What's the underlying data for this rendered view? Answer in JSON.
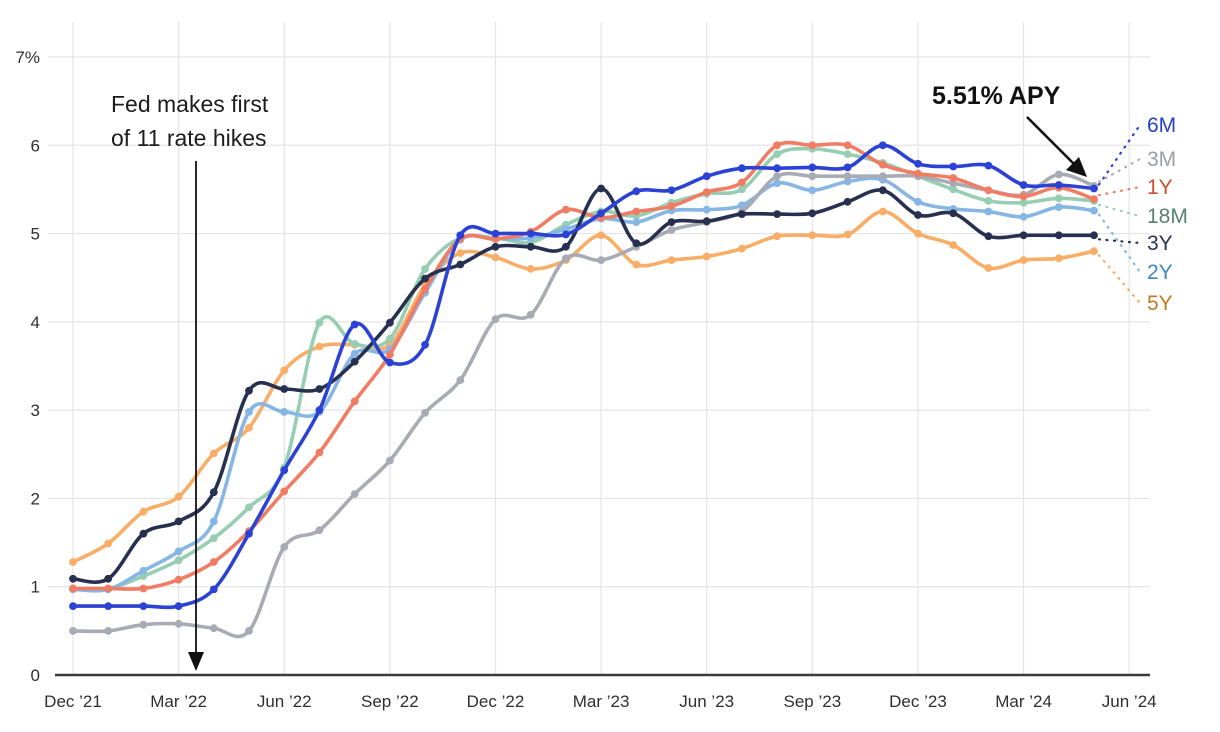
{
  "chart_data": {
    "type": "line",
    "title": "",
    "unit": "%",
    "ylim": [
      0,
      7
    ],
    "grid": true,
    "points_per_series": 30,
    "x_start_month": "Dec 2021",
    "x_end_month": "May 2024",
    "x_tick_every_months": 3,
    "x_tick_labels": [
      "Dec ’21",
      "Mar ’22",
      "Jun ’22",
      "Sep ’22",
      "Dec ’22",
      "Mar ’23",
      "Jun ’23",
      "Sep ’23",
      "Dec ’23",
      "Mar ’24",
      "Jun ’24"
    ],
    "y_tick_labels": [
      "0",
      "1",
      "2",
      "3",
      "4",
      "5",
      "6",
      "7%"
    ],
    "legend_position": "right",
    "draw_order": [
      "5Y",
      "18M",
      "2Y",
      "3M",
      "1Y",
      "3Y",
      "6M"
    ],
    "series": [
      {
        "name": "6M",
        "line_color": "#2b42d4",
        "label_color": "#2640cc",
        "values": [
          0.78,
          0.78,
          0.78,
          0.78,
          0.97,
          1.6,
          2.32,
          3.0,
          3.97,
          3.54,
          3.74,
          4.98,
          5.0,
          5.0,
          4.99,
          5.23,
          5.48,
          5.49,
          5.65,
          5.74,
          5.74,
          5.75,
          5.75,
          6.0,
          5.79,
          5.76,
          5.77,
          5.55,
          5.55,
          5.51
        ]
      },
      {
        "name": "3M",
        "line_color": "#a8aab4",
        "label_color": "#9b9da8",
        "values": [
          0.5,
          0.5,
          0.57,
          0.58,
          0.53,
          0.5,
          1.45,
          1.64,
          2.05,
          2.43,
          2.97,
          3.34,
          4.03,
          4.08,
          4.72,
          4.7,
          4.85,
          5.04,
          5.13,
          5.25,
          5.65,
          5.65,
          5.65,
          5.65,
          5.65,
          5.57,
          5.49,
          5.44,
          5.67,
          5.54
        ]
      },
      {
        "name": "1Y",
        "line_color": "#f07d63",
        "label_color": "#c8502f",
        "values": [
          0.98,
          0.98,
          0.98,
          1.08,
          1.28,
          1.63,
          2.08,
          2.52,
          3.1,
          3.63,
          4.37,
          4.94,
          4.94,
          5.02,
          5.27,
          5.18,
          5.25,
          5.31,
          5.47,
          5.58,
          6.0,
          6.0,
          6.0,
          5.78,
          5.68,
          5.63,
          5.49,
          5.42,
          5.52,
          5.39
        ]
      },
      {
        "name": "18M",
        "line_color": "#96cdb3",
        "label_color": "#57826e",
        "values": [
          0.98,
          0.98,
          1.12,
          1.3,
          1.55,
          1.9,
          2.35,
          3.99,
          3.75,
          3.81,
          4.6,
          4.95,
          4.95,
          4.9,
          5.1,
          5.25,
          5.2,
          5.35,
          5.45,
          5.5,
          5.9,
          5.96,
          5.9,
          5.8,
          5.65,
          5.5,
          5.37,
          5.35,
          5.4,
          5.37
        ]
      },
      {
        "name": "3Y",
        "line_color": "#283050",
        "label_color": "#2a3350",
        "values": [
          1.09,
          1.09,
          1.6,
          1.74,
          2.07,
          3.22,
          3.24,
          3.24,
          3.55,
          3.99,
          4.49,
          4.65,
          4.85,
          4.85,
          4.85,
          5.51,
          4.89,
          5.13,
          5.14,
          5.22,
          5.22,
          5.23,
          5.36,
          5.49,
          5.21,
          5.23,
          4.97,
          4.98,
          4.98,
          4.98
        ]
      },
      {
        "name": "2Y",
        "line_color": "#85b6e4",
        "label_color": "#3f87c6",
        "values": [
          0.97,
          0.97,
          1.18,
          1.4,
          1.74,
          2.98,
          2.98,
          2.98,
          3.64,
          3.69,
          4.33,
          4.93,
          4.94,
          4.95,
          5.05,
          5.17,
          5.13,
          5.26,
          5.27,
          5.32,
          5.57,
          5.49,
          5.59,
          5.61,
          5.36,
          5.28,
          5.25,
          5.19,
          5.3,
          5.26
        ]
      },
      {
        "name": "5Y",
        "line_color": "#f9ad66",
        "label_color": "#bf7a21",
        "values": [
          1.28,
          1.49,
          1.85,
          2.02,
          2.51,
          2.8,
          3.45,
          3.72,
          3.74,
          3.74,
          4.42,
          4.78,
          4.73,
          4.6,
          4.7,
          4.98,
          4.65,
          4.7,
          4.74,
          4.83,
          4.97,
          4.98,
          4.99,
          5.25,
          5.0,
          4.87,
          4.61,
          4.7,
          4.72,
          4.8
        ]
      }
    ],
    "annotations": [
      {
        "id": "fed-hike",
        "text_lines": [
          "Fed makes first",
          "of 11 rate hikes"
        ],
        "arrow": "vertical-down",
        "color": "#1d1d1d"
      },
      {
        "id": "apy-callout",
        "text": "5.51% APY",
        "arrow": "diagonal-down-right",
        "color": "#111111"
      }
    ]
  },
  "colors": {
    "background": "#ffffff",
    "gridline": "#e4e4e7",
    "axis_line": "#3a3a3f",
    "tick_label": "#2f2f33",
    "annotation_arrow": "#111111"
  }
}
